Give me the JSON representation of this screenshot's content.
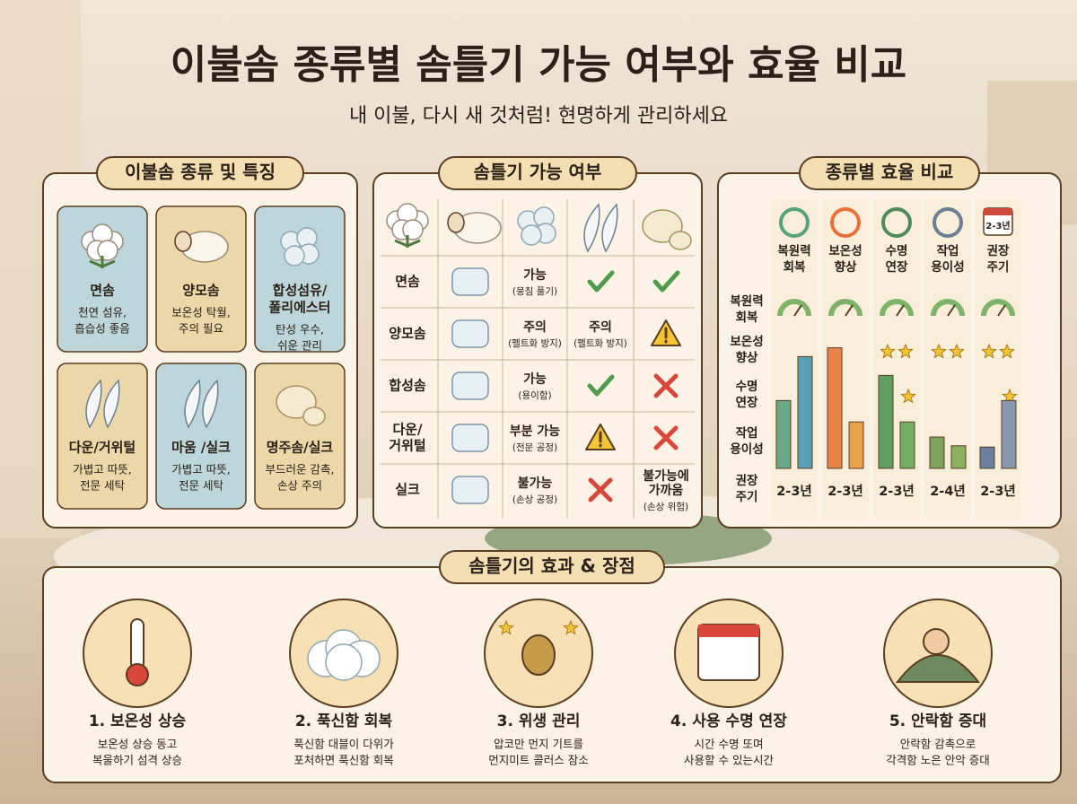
{
  "title": "이불솜 종류별 솜틀기 가능 여부와 효율 비교",
  "subtitle": "내 이불, 다시 새 것처럼! 현명하게 관리하세요",
  "types": {
    "heading": "이불솜 종류 및 특징",
    "cards": [
      {
        "name": [
          "면솜"
        ],
        "desc": [
          "천연 섬유,",
          "흡습성 좋음"
        ]
      },
      {
        "name": [
          "양모솜"
        ],
        "desc": [
          "보온성 탁월,",
          "주의 필요"
        ]
      },
      {
        "name": [
          "합성섬유/",
          "폴리에스터"
        ],
        "desc": [
          "탄성 우수,",
          "쉬운 관리"
        ]
      },
      {
        "name": [
          "다운/거위털"
        ],
        "desc": [
          "가볍고 따뜻,",
          "전문 세탁"
        ]
      },
      {
        "name": [
          "마움 /실크"
        ],
        "desc": [
          "가볍고 따뜻,",
          "전문 세탁"
        ]
      },
      {
        "name": [
          "명주솜/실크"
        ],
        "desc": [
          "부드러운 감촉,",
          "손상 주의"
        ]
      }
    ]
  },
  "availability": {
    "heading": "솜틀기 가능 여부",
    "rows": [
      {
        "name": [
          "면솜"
        ],
        "status": {
          "main": [
            "가능"
          ],
          "sub": "(뭉침 풀기)"
        },
        "cells": [
          {
            "icon": "check"
          },
          {
            "icon": "check"
          }
        ]
      },
      {
        "name": [
          "양모솜"
        ],
        "status": {
          "main": [
            "주의"
          ],
          "sub": "(펠트화 방지)"
        },
        "cells": [
          {
            "main": [
              "주의"
            ],
            "sub": "(펠트화 방지)"
          },
          {
            "icon": "warn"
          }
        ]
      },
      {
        "name": [
          "합성솜"
        ],
        "status": {
          "main": [
            "가능"
          ],
          "sub": "(용이함)"
        },
        "cells": [
          {
            "icon": "check"
          },
          {
            "icon": "cross"
          }
        ]
      },
      {
        "name": [
          "다운/",
          "거위털"
        ],
        "status": {
          "main": [
            "부분 가능"
          ],
          "sub": "(전문 공정)"
        },
        "cells": [
          {
            "icon": "warn"
          },
          {
            "icon": "cross"
          }
        ]
      },
      {
        "name": [
          "실크"
        ],
        "status": {
          "main": [
            "불가능"
          ],
          "sub": "(손상 공정)"
        },
        "cells": [
          {
            "icon": "cross"
          },
          {
            "main": [
              "불가능에",
              "가까움"
            ],
            "sub": "(손상 위험)"
          }
        ]
      }
    ]
  },
  "efficiency": {
    "heading": "종류별 효율 비교",
    "columns": [
      [
        "복원력",
        "회복"
      ],
      [
        "보온성",
        "향상"
      ],
      [
        "수명",
        "연장"
      ],
      [
        "작업",
        "용이성"
      ],
      [
        "권장",
        "주기"
      ]
    ],
    "calendar_label": "2-3년",
    "row_labels": [
      [
        "복원력",
        "회복"
      ],
      [
        "보온성",
        "향상"
      ],
      [
        "수명",
        "연장"
      ],
      [
        "작업",
        "용이성"
      ],
      [
        "권장",
        "주기"
      ]
    ],
    "ylim": [
      0,
      10
    ],
    "bars": [
      {
        "values": [
          5.4,
          8.9
        ],
        "colors": [
          "#6aa88a",
          "#5b9fb5"
        ]
      },
      {
        "values": [
          9.6,
          3.7
        ],
        "colors": [
          "#e8844a",
          "#e8a34a"
        ]
      },
      {
        "values": [
          7.4,
          3.7
        ],
        "colors": [
          "#5f9e62",
          "#74ac66"
        ]
      },
      {
        "values": [
          2.5,
          1.8
        ],
        "colors": [
          "#7ea35a",
          "#8db060"
        ]
      },
      {
        "values": [
          1.7,
          5.4
        ],
        "colors": [
          "#6c7f9c",
          "#8797b0"
        ]
      }
    ],
    "warmth_stars": [
      0,
      0,
      2,
      2,
      2
    ],
    "life_stars": [
      0,
      0,
      1,
      0,
      1
    ],
    "cycles": [
      "2-3년",
      "2-3년",
      "2-3년",
      "2-4년",
      "2-3년"
    ]
  },
  "effects": {
    "heading": "솜틀기의 효과 & 장점",
    "items": [
      {
        "title": "1. 보온성 상승",
        "desc": [
          "보온성 상승 동고",
          "복울하기 섬격 상승"
        ]
      },
      {
        "title": "2. 푹신함 회복",
        "desc": [
          "푹신함 대블이 다위가",
          "포처하면 푹신함 회복"
        ]
      },
      {
        "title": "3. 위생 관리",
        "desc": [
          "압코만 먼지 기트를",
          "먼지미트 콜러스 잠소"
        ]
      },
      {
        "title": "4. 사용 수명 연장",
        "desc": [
          "시간 수명 또며",
          "사용할 수 있는시간"
        ]
      },
      {
        "title": "5. 안락함 증대",
        "desc": [
          "안락함 감촉으로",
          "각격함 노은 안악 증대"
        ]
      }
    ]
  }
}
